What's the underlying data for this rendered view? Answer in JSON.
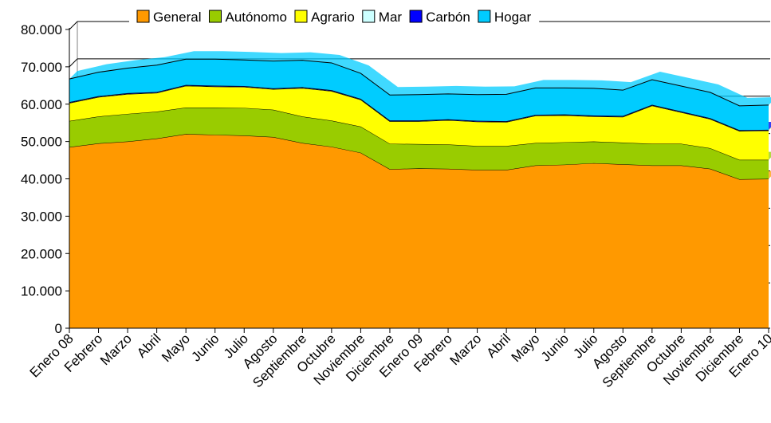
{
  "chart_data": {
    "type": "area",
    "stacked": true,
    "categories": [
      "Enero 08",
      "Febrero",
      "Marzo",
      "Abril",
      "Mayo",
      "Junio",
      "Julio",
      "Agosto",
      "Septiembre",
      "Octubre",
      "Noviembre",
      "Diciembre",
      "Enero 09",
      "Febrero",
      "Marzo",
      "Abril",
      "Mayo",
      "Junio",
      "Julio",
      "Agosto",
      "Septiembre",
      "Octubre",
      "Noviembre",
      "Diciembre",
      "Enero 10"
    ],
    "ylim": [
      0,
      80000
    ],
    "yticks": [
      0,
      10000,
      20000,
      30000,
      40000,
      50000,
      60000,
      70000,
      80000
    ],
    "ytick_labels": [
      "0",
      "10.000",
      "20.000",
      "30.000",
      "40.000",
      "50.000",
      "60.000",
      "70.000",
      "80.000"
    ],
    "legend_position": "top",
    "series": [
      {
        "name": "General",
        "color": "#ff9900",
        "values": [
          48500,
          49500,
          50000,
          50800,
          52000,
          51800,
          51600,
          51200,
          49600,
          48600,
          47000,
          42600,
          42800,
          42700,
          42400,
          42400,
          43600,
          43800,
          44200,
          43900,
          43600,
          43600,
          42700,
          39900,
          40000
        ]
      },
      {
        "name": "Autónomo",
        "color": "#99cc00",
        "values": [
          7000,
          7200,
          7400,
          7200,
          7100,
          7300,
          7400,
          7300,
          7100,
          7000,
          7000,
          6800,
          6500,
          6500,
          6400,
          6400,
          6000,
          6000,
          5800,
          5800,
          5800,
          5800,
          5500,
          5200,
          5100
        ]
      },
      {
        "name": "Agrario",
        "color": "#ffff00",
        "values": [
          4800,
          5200,
          5300,
          5000,
          5800,
          5600,
          5600,
          5500,
          7600,
          7900,
          7200,
          6000,
          6100,
          6500,
          6500,
          6400,
          7300,
          7200,
          6700,
          6900,
          10200,
          8400,
          7800,
          7700,
          7800
        ]
      },
      {
        "name": "Mar",
        "color": "#ccffff",
        "values": [
          100,
          100,
          100,
          100,
          100,
          100,
          100,
          100,
          100,
          100,
          100,
          100,
          100,
          100,
          100,
          100,
          100,
          100,
          100,
          100,
          100,
          100,
          100,
          100,
          100
        ]
      },
      {
        "name": "Carbón",
        "color": "#0000ff",
        "values": [
          150,
          150,
          150,
          150,
          150,
          150,
          150,
          150,
          150,
          150,
          150,
          150,
          150,
          150,
          150,
          150,
          150,
          150,
          150,
          150,
          150,
          150,
          150,
          150,
          150
        ]
      },
      {
        "name": "Hogar",
        "color": "#00ccff",
        "values": [
          6200,
          6400,
          6700,
          7200,
          6900,
          7100,
          7000,
          7300,
          7200,
          7300,
          6800,
          6800,
          6900,
          6800,
          7000,
          7200,
          7200,
          7100,
          7300,
          6900,
          6700,
          6800,
          6900,
          6500,
          6600
        ]
      }
    ]
  }
}
